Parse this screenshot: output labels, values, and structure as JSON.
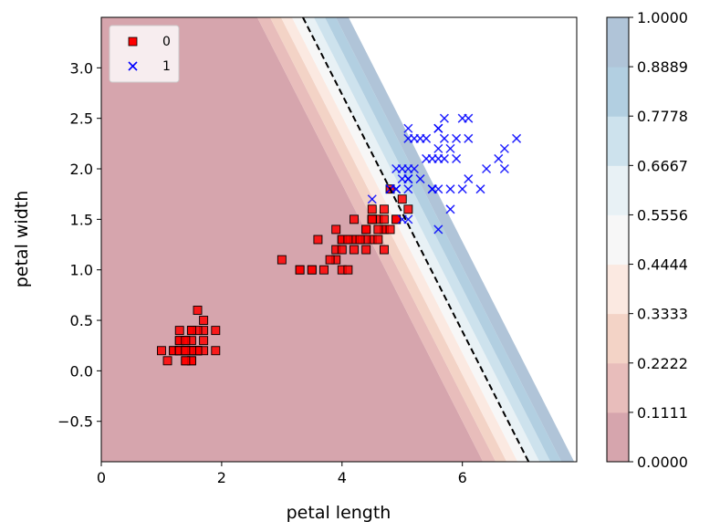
{
  "chart_data": {
    "type": "scatter",
    "title": "",
    "xlabel": "petal length",
    "ylabel": "petal width",
    "xlim": [
      0,
      7.9
    ],
    "ylim": [
      -0.9,
      3.5
    ],
    "xticks": [
      0,
      2,
      4,
      6
    ],
    "xtick_labels": [
      "0",
      "2",
      "4",
      "6"
    ],
    "yticks": [
      -0.5,
      0.0,
      0.5,
      1.0,
      1.5,
      2.0,
      2.5,
      3.0
    ],
    "ytick_labels": [
      "−0.5",
      "0.0",
      "0.5",
      "1.0",
      "1.5",
      "2.0",
      "2.5",
      "3.0"
    ],
    "grid": false,
    "legend_position": "top-left",
    "decision_boundary": {
      "description_points": [
        [
          3.35,
          3.5
        ],
        [
          7.1,
          -0.9
        ]
      ],
      "style": "dashed",
      "color": "#000000"
    },
    "probability_contours": {
      "levels": [
        "0.0000",
        "0.1111",
        "0.2222",
        "0.3333",
        "0.4444",
        "0.5556",
        "0.6667",
        "0.7778",
        "0.8889",
        "1.0000"
      ],
      "colors": [
        "#d6a5ad",
        "#e8bdbb",
        "#f3d3c6",
        "#fbe9e1",
        "#f7f7f7",
        "#e8f1f5",
        "#cde2ed",
        "#b2cfe1",
        "#b0c4d8"
      ]
    },
    "series": [
      {
        "name": "0",
        "marker": "square",
        "color": "#ff0000",
        "edge_color": "#000000",
        "points": [
          [
            1.4,
            0.2
          ],
          [
            1.4,
            0.2
          ],
          [
            1.3,
            0.2
          ],
          [
            1.5,
            0.2
          ],
          [
            1.4,
            0.2
          ],
          [
            1.7,
            0.4
          ],
          [
            1.4,
            0.3
          ],
          [
            1.5,
            0.2
          ],
          [
            1.4,
            0.2
          ],
          [
            1.5,
            0.1
          ],
          [
            1.5,
            0.2
          ],
          [
            1.6,
            0.2
          ],
          [
            1.4,
            0.1
          ],
          [
            1.1,
            0.1
          ],
          [
            1.2,
            0.2
          ],
          [
            1.5,
            0.4
          ],
          [
            1.3,
            0.4
          ],
          [
            1.4,
            0.3
          ],
          [
            1.7,
            0.3
          ],
          [
            1.5,
            0.3
          ],
          [
            1.7,
            0.2
          ],
          [
            1.5,
            0.4
          ],
          [
            1.0,
            0.2
          ],
          [
            1.7,
            0.5
          ],
          [
            1.9,
            0.2
          ],
          [
            1.6,
            0.2
          ],
          [
            1.6,
            0.4
          ],
          [
            1.5,
            0.2
          ],
          [
            1.4,
            0.2
          ],
          [
            1.6,
            0.2
          ],
          [
            1.6,
            0.2
          ],
          [
            1.5,
            0.4
          ],
          [
            1.5,
            0.1
          ],
          [
            1.4,
            0.2
          ],
          [
            1.5,
            0.2
          ],
          [
            1.2,
            0.2
          ],
          [
            1.3,
            0.2
          ],
          [
            1.4,
            0.1
          ],
          [
            1.3,
            0.2
          ],
          [
            1.5,
            0.2
          ],
          [
            1.3,
            0.3
          ],
          [
            1.3,
            0.3
          ],
          [
            1.3,
            0.2
          ],
          [
            1.6,
            0.6
          ],
          [
            1.9,
            0.4
          ],
          [
            1.4,
            0.3
          ],
          [
            1.6,
            0.2
          ],
          [
            1.4,
            0.2
          ],
          [
            1.5,
            0.2
          ],
          [
            1.4,
            0.2
          ],
          [
            4.7,
            1.4
          ],
          [
            4.5,
            1.5
          ],
          [
            4.9,
            1.5
          ],
          [
            4.0,
            1.3
          ],
          [
            4.6,
            1.5
          ],
          [
            4.5,
            1.3
          ],
          [
            4.7,
            1.6
          ],
          [
            3.3,
            1.0
          ],
          [
            4.6,
            1.3
          ],
          [
            3.9,
            1.4
          ],
          [
            3.5,
            1.0
          ],
          [
            4.2,
            1.5
          ],
          [
            4.0,
            1.0
          ],
          [
            4.7,
            1.4
          ],
          [
            3.6,
            1.3
          ],
          [
            4.4,
            1.4
          ],
          [
            4.5,
            1.5
          ],
          [
            4.1,
            1.0
          ],
          [
            4.5,
            1.5
          ],
          [
            3.9,
            1.1
          ],
          [
            4.8,
            1.8
          ],
          [
            4.0,
            1.3
          ],
          [
            4.9,
            1.5
          ],
          [
            4.7,
            1.2
          ],
          [
            4.3,
            1.3
          ],
          [
            4.4,
            1.4
          ],
          [
            4.8,
            1.4
          ],
          [
            5.0,
            1.7
          ],
          [
            4.5,
            1.5
          ],
          [
            3.5,
            1.0
          ],
          [
            3.8,
            1.1
          ],
          [
            3.7,
            1.0
          ],
          [
            3.9,
            1.2
          ],
          [
            5.1,
            1.6
          ],
          [
            4.5,
            1.5
          ],
          [
            4.5,
            1.6
          ],
          [
            4.7,
            1.5
          ],
          [
            4.4,
            1.3
          ],
          [
            4.1,
            1.3
          ],
          [
            4.0,
            1.3
          ],
          [
            4.4,
            1.2
          ],
          [
            4.6,
            1.4
          ],
          [
            4.0,
            1.2
          ],
          [
            3.3,
            1.0
          ],
          [
            4.2,
            1.3
          ],
          [
            4.2,
            1.2
          ],
          [
            4.2,
            1.3
          ],
          [
            4.3,
            1.3
          ],
          [
            3.0,
            1.1
          ],
          [
            4.1,
            1.3
          ]
        ]
      },
      {
        "name": "1",
        "marker": "x",
        "color": "#0000ff",
        "points": [
          [
            6.0,
            2.5
          ],
          [
            5.1,
            1.9
          ],
          [
            5.9,
            2.1
          ],
          [
            5.6,
            1.8
          ],
          [
            5.8,
            2.2
          ],
          [
            6.6,
            2.1
          ],
          [
            4.5,
            1.7
          ],
          [
            6.3,
            1.8
          ],
          [
            5.8,
            1.8
          ],
          [
            6.1,
            2.5
          ],
          [
            5.1,
            2.0
          ],
          [
            5.3,
            1.9
          ],
          [
            5.5,
            2.1
          ],
          [
            5.0,
            2.0
          ],
          [
            5.1,
            2.4
          ],
          [
            5.3,
            2.3
          ],
          [
            5.5,
            1.8
          ],
          [
            6.7,
            2.2
          ],
          [
            6.9,
            2.3
          ],
          [
            5.0,
            1.5
          ],
          [
            5.7,
            2.3
          ],
          [
            4.9,
            2.0
          ],
          [
            6.7,
            2.0
          ],
          [
            4.9,
            1.8
          ],
          [
            5.7,
            2.1
          ],
          [
            6.0,
            1.8
          ],
          [
            4.8,
            1.8
          ],
          [
            4.9,
            1.8
          ],
          [
            5.6,
            2.1
          ],
          [
            5.8,
            1.6
          ],
          [
            6.1,
            1.9
          ],
          [
            6.4,
            2.0
          ],
          [
            5.6,
            2.2
          ],
          [
            5.1,
            1.5
          ],
          [
            5.6,
            1.4
          ],
          [
            6.1,
            2.3
          ],
          [
            5.6,
            2.4
          ],
          [
            5.5,
            1.8
          ],
          [
            4.8,
            1.8
          ],
          [
            5.4,
            2.1
          ],
          [
            5.6,
            2.4
          ],
          [
            5.1,
            2.3
          ],
          [
            5.1,
            1.9
          ],
          [
            5.9,
            2.3
          ],
          [
            5.7,
            2.5
          ],
          [
            5.2,
            2.3
          ],
          [
            5.0,
            1.9
          ],
          [
            5.2,
            2.0
          ],
          [
            5.4,
            2.3
          ],
          [
            5.1,
            1.8
          ]
        ]
      }
    ],
    "colorbar": {
      "tick_labels": [
        "1.0000",
        "0.8889",
        "0.7778",
        "0.6667",
        "0.5556",
        "0.4444",
        "0.3333",
        "0.2222",
        "0.1111",
        "0.0000"
      ]
    }
  }
}
